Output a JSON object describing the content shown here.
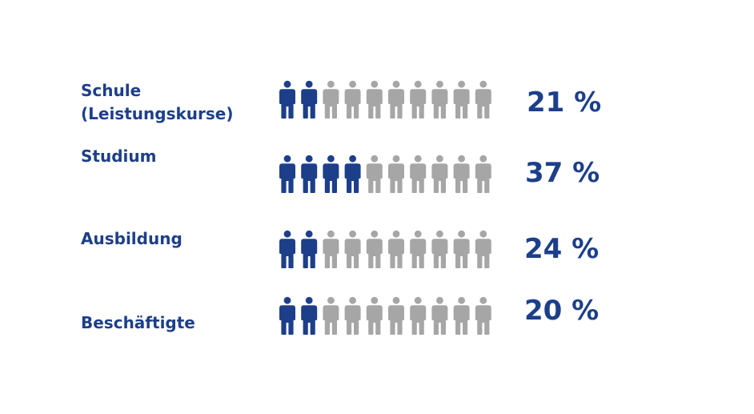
{
  "chart_data": {
    "type": "pictogram",
    "units_per_icon": 10,
    "icons_total": 10,
    "categories": [
      "Schule (Leistungskurse)",
      "Studium",
      "Ausbildung",
      "Beschäftigte"
    ],
    "values": [
      21,
      37,
      24,
      20
    ],
    "labels": {
      "row1_line1": "Schule",
      "row1_line2": "(Leistungskurse)",
      "row2": "Studium",
      "row3": "Ausbildung",
      "row4": "Beschäftigte"
    },
    "value_labels": [
      "21 %",
      "37 %",
      "24 %",
      "20 %"
    ],
    "filled_icons": [
      2,
      4,
      2,
      2
    ],
    "colors": {
      "filled": "#1d3f8a",
      "empty": "#a6a6a6",
      "text": "#1d3f8a"
    }
  }
}
